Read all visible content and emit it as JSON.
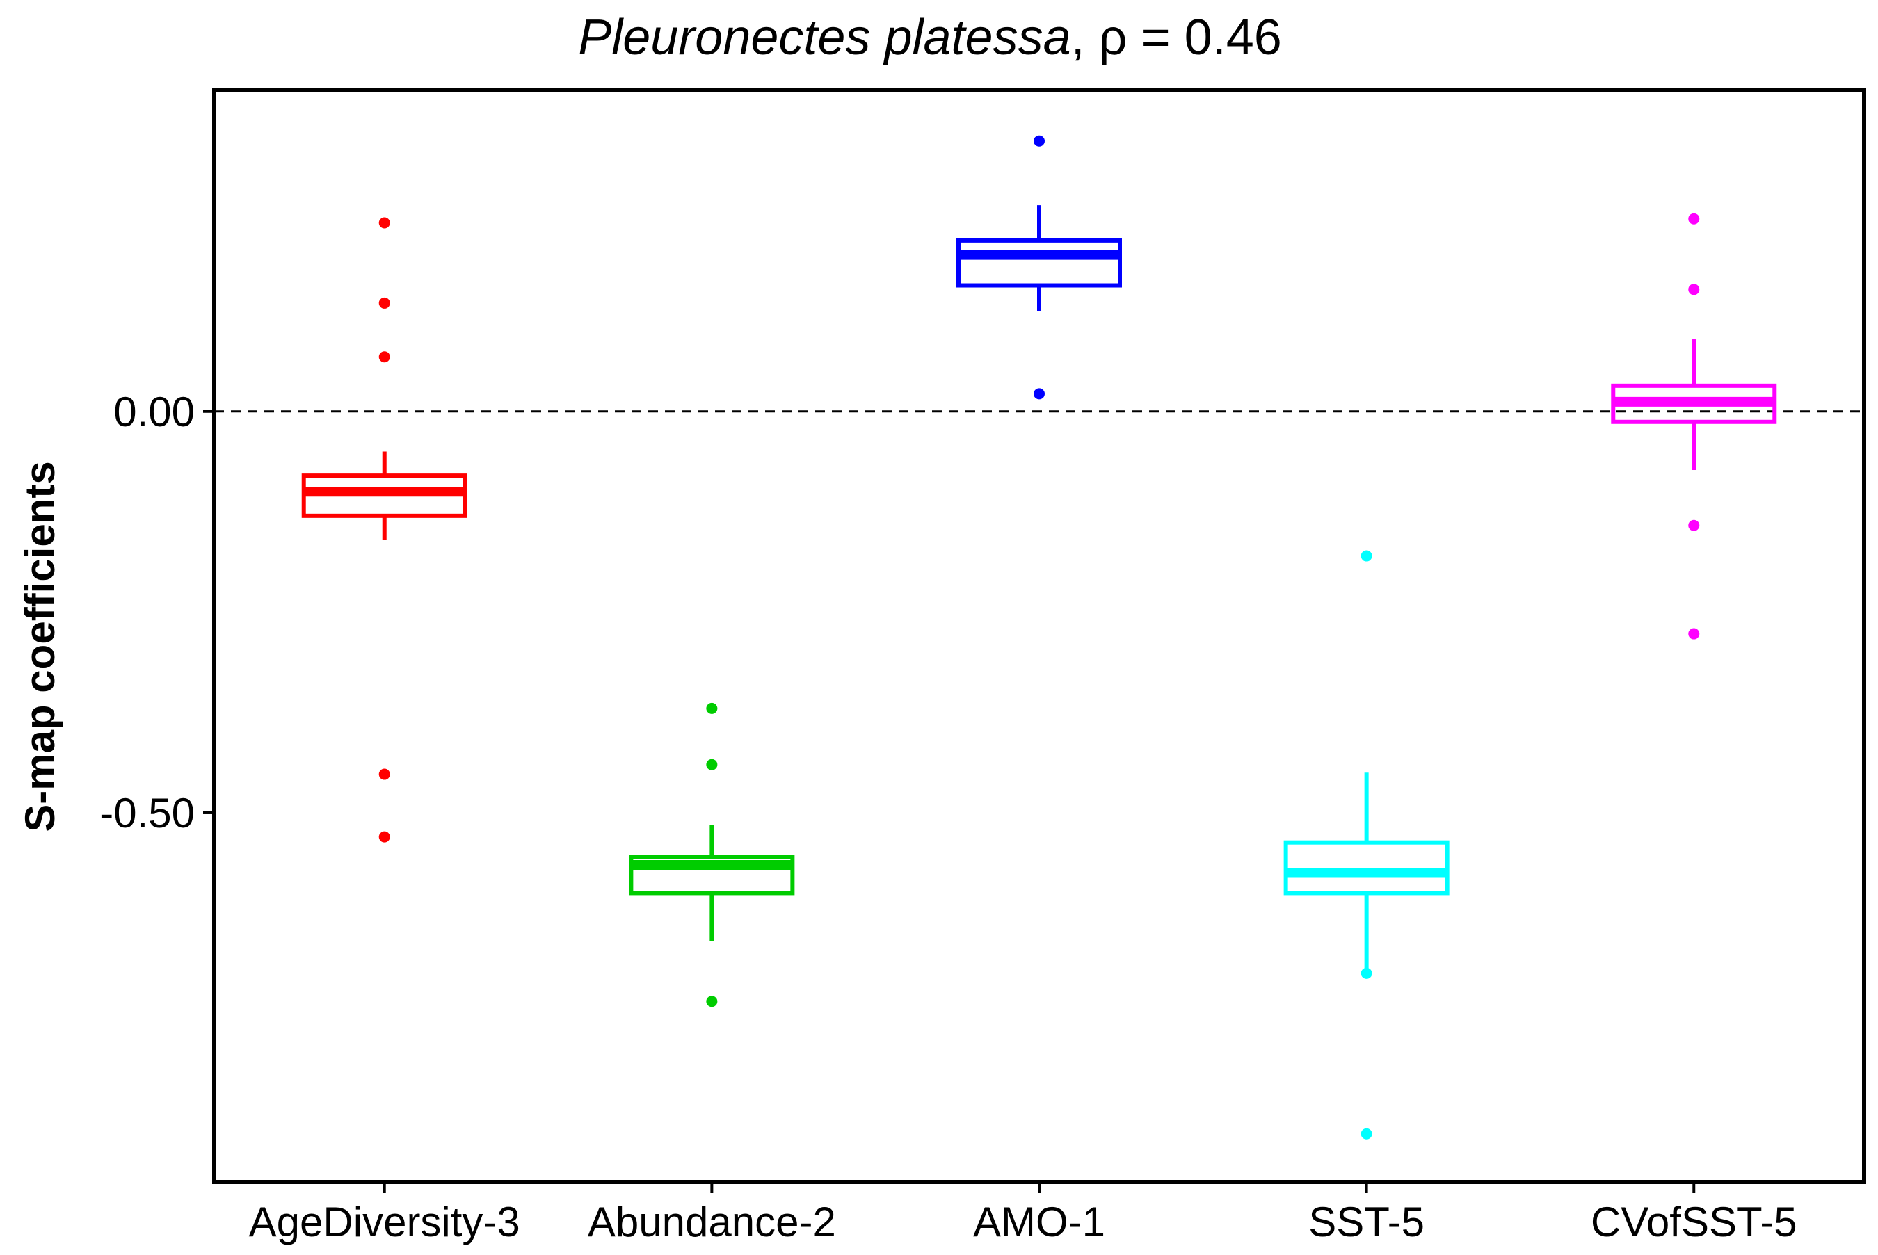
{
  "chart_data": {
    "type": "boxplot",
    "title": {
      "species": "Pleuronectes platessa",
      "suffix": ", ρ = 0.46"
    },
    "xlabel": "",
    "ylabel": "S-map coefficients",
    "ylim": [
      -0.96,
      0.4
    ],
    "yticks": [
      {
        "value": 0.0,
        "label": "0.00"
      },
      {
        "value": -0.5,
        "label": "-0.50"
      }
    ],
    "reference_line": {
      "value": 0.0,
      "style": "dashed"
    },
    "grid": false,
    "legend": "none",
    "categories": [
      "AgeDiversity-3",
      "Abundance-2",
      "AMO-1",
      "SST-5",
      "CVofSST-5"
    ],
    "boxes": [
      {
        "category": "AgeDiversity-3",
        "color": "#ff0000",
        "whisker_low": -0.16,
        "q1": -0.13,
        "median": -0.1,
        "q3": -0.08,
        "whisker_high": -0.05,
        "outliers": [
          0.235,
          0.135,
          0.068,
          -0.452,
          -0.53
        ]
      },
      {
        "category": "Abundance-2",
        "color": "#00cc00",
        "whisker_low": -0.66,
        "q1": -0.6,
        "median": -0.565,
        "q3": -0.555,
        "whisker_high": -0.515,
        "outliers": [
          -0.37,
          -0.44,
          -0.735
        ]
      },
      {
        "category": "AMO-1",
        "color": "#0000ff",
        "whisker_low": 0.125,
        "q1": 0.157,
        "median": 0.195,
        "q3": 0.213,
        "whisker_high": 0.257,
        "outliers": [
          0.337,
          0.022
        ]
      },
      {
        "category": "SST-5",
        "color": "#00ffff",
        "whisker_low": -0.7,
        "q1": -0.6,
        "median": -0.575,
        "q3": -0.537,
        "whisker_high": -0.45,
        "outliers": [
          -0.18,
          -0.7,
          -0.9
        ]
      },
      {
        "category": "CVofSST-5",
        "color": "#ff00ff",
        "whisker_low": -0.073,
        "q1": -0.013,
        "median": 0.012,
        "q3": 0.032,
        "whisker_high": 0.09,
        "outliers": [
          0.24,
          0.152,
          -0.142,
          -0.277
        ]
      }
    ]
  }
}
